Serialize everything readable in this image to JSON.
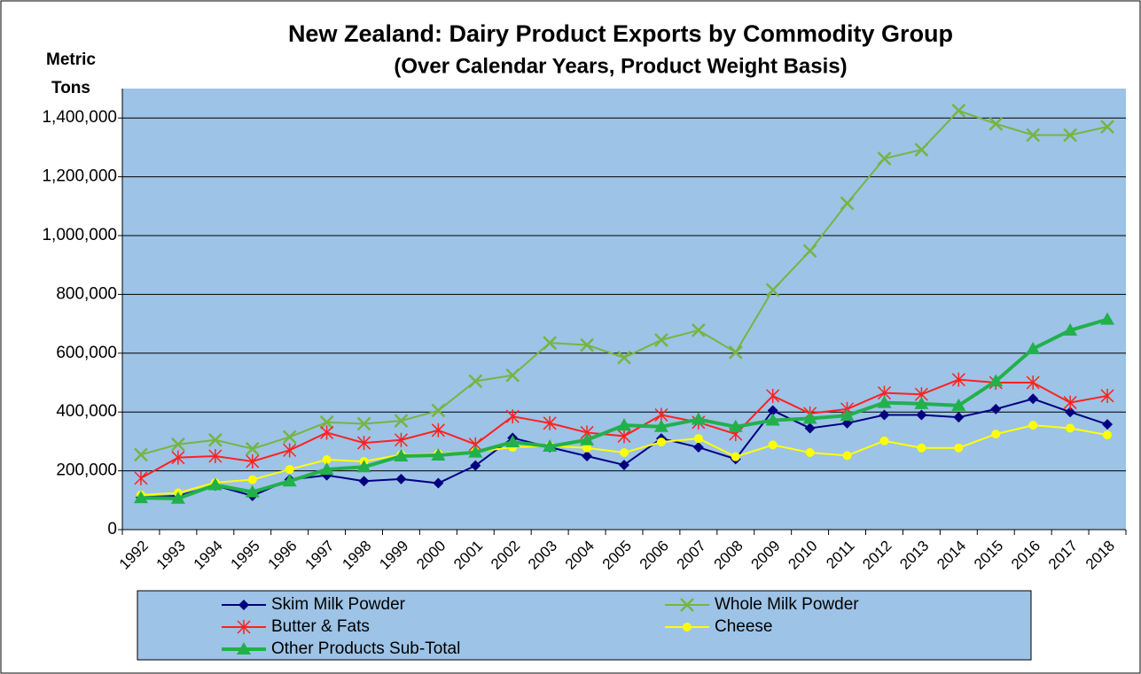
{
  "chart_data": {
    "type": "line",
    "title": "New Zealand: Dairy Product  Exports by Commodity Group",
    "subtitle": "(Over Calendar Years, Product Weight Basis)",
    "y_label": "Metric Tons",
    "categories": [
      "1992",
      "1993",
      "1994",
      "1995",
      "1996",
      "1997",
      "1998",
      "1999",
      "2000",
      "2001",
      "2002",
      "2003",
      "2004",
      "2005",
      "2006",
      "2007",
      "2008",
      "2009",
      "2010",
      "2011",
      "2012",
      "2013",
      "2014",
      "2015",
      "2016",
      "2017",
      "2018"
    ],
    "series": [
      {
        "name": "Skim Milk Powder",
        "color": "#000080",
        "marker": "diamond",
        "values": [
          110000,
          115000,
          150000,
          115000,
          170000,
          185000,
          165000,
          172000,
          158000,
          218000,
          312000,
          280000,
          250000,
          220000,
          310000,
          280000,
          240000,
          405000,
          345000,
          362000,
          390000,
          390000,
          382000,
          410000,
          445000,
          400000,
          358000
        ]
      },
      {
        "name": "Whole Milk Powder",
        "color": "#77b443",
        "marker": "x",
        "values": [
          255000,
          290000,
          305000,
          275000,
          315000,
          365000,
          360000,
          370000,
          405000,
          505000,
          525000,
          635000,
          628000,
          585000,
          645000,
          678000,
          603000,
          815000,
          948000,
          1110000,
          1262000,
          1292000,
          1425000,
          1380000,
          1342000,
          1342000,
          1370000
        ]
      },
      {
        "name": "Butter & Fats",
        "color": "#ff2020",
        "marker": "star",
        "values": [
          175000,
          245000,
          250000,
          232000,
          270000,
          330000,
          295000,
          305000,
          338000,
          290000,
          385000,
          362000,
          330000,
          318000,
          390000,
          365000,
          325000,
          455000,
          395000,
          410000,
          465000,
          460000,
          510000,
          500000,
          500000,
          432000,
          455000
        ]
      },
      {
        "name": "Cheese",
        "color": "#ffff00",
        "marker": "circle",
        "values": [
          118000,
          125000,
          160000,
          170000,
          205000,
          238000,
          232000,
          255000,
          258000,
          265000,
          280000,
          285000,
          278000,
          262000,
          298000,
          310000,
          248000,
          288000,
          262000,
          252000,
          302000,
          278000,
          278000,
          325000,
          355000,
          345000,
          322000
        ]
      },
      {
        "name": "Other Products Sub-Total",
        "color": "#22b04b",
        "marker": "triangle",
        "width": 4,
        "values": [
          108000,
          106000,
          152000,
          128000,
          165000,
          205000,
          213000,
          250000,
          253000,
          263000,
          298000,
          283000,
          305000,
          355000,
          350000,
          375000,
          350000,
          372000,
          378000,
          388000,
          432000,
          428000,
          422000,
          505000,
          615000,
          678000,
          715000
        ]
      }
    ],
    "ylim": [
      0,
      1500000
    ],
    "yticks": [
      0,
      {
        "value": 200000,
        "label": "200,000"
      },
      {
        "value": 400000,
        "label": "400,000"
      },
      {
        "value": 600000,
        "label": "600,000"
      },
      {
        "value": 800000,
        "label": "800,000"
      },
      {
        "value": 1000000,
        "label": "1,000,000"
      },
      {
        "value": 1200000,
        "label": "1,200,000"
      },
      {
        "value": 1400000,
        "label": "1,400,000"
      }
    ],
    "grid": true
  }
}
